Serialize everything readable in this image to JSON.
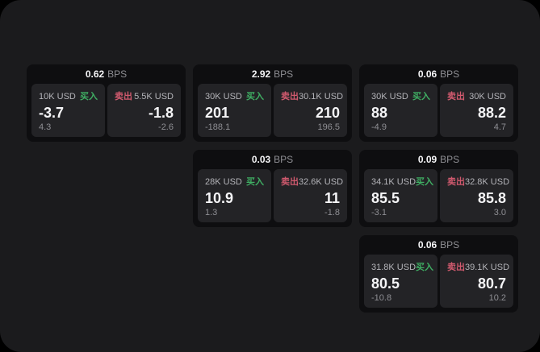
{
  "colors": {
    "page_bg": "#000000",
    "panel_bg": "#1b1b1d",
    "card_bg": "#0e0e10",
    "subcard_bg": "#232326",
    "text_primary": "#f5f5f7",
    "text_label": "#b4b4b9",
    "text_muted": "#8f8f94",
    "buy_green": "#3fae63",
    "sell_red": "#d05a6e"
  },
  "labels": {
    "bps": "BPS",
    "buy": "买入",
    "sell": "卖出"
  },
  "cards": [
    {
      "row": 1,
      "col": 1,
      "bps": "0.62",
      "buy": {
        "amount": "10K USD",
        "value": "-3.7",
        "delta": "4.3"
      },
      "sell": {
        "amount": "5.5K USD",
        "value": "-1.8",
        "delta": "-2.6"
      }
    },
    {
      "row": 1,
      "col": 2,
      "bps": "2.92",
      "buy": {
        "amount": "30K USD",
        "value": "201",
        "delta": "-188.1"
      },
      "sell": {
        "amount": "30.1K USD",
        "value": "210",
        "delta": "196.5"
      }
    },
    {
      "row": 1,
      "col": 3,
      "bps": "0.06",
      "buy": {
        "amount": "30K USD",
        "value": "88",
        "delta": "-4.9"
      },
      "sell": {
        "amount": "30K USD",
        "value": "88.2",
        "delta": "4.7"
      }
    },
    {
      "row": 2,
      "col": 2,
      "bps": "0.03",
      "buy": {
        "amount": "28K USD",
        "value": "10.9",
        "delta": "1.3"
      },
      "sell": {
        "amount": "32.6K USD",
        "value": "11",
        "delta": "-1.8"
      }
    },
    {
      "row": 2,
      "col": 3,
      "bps": "0.09",
      "buy": {
        "amount": "34.1K USD",
        "value": "85.5",
        "delta": "-3.1"
      },
      "sell": {
        "amount": "32.8K USD",
        "value": "85.8",
        "delta": "3.0"
      }
    },
    {
      "row": 3,
      "col": 3,
      "bps": "0.06",
      "buy": {
        "amount": "31.8K USD",
        "value": "80.5",
        "delta": "-10.8"
      },
      "sell": {
        "amount": "39.1K USD",
        "value": "80.7",
        "delta": "10.2"
      }
    }
  ]
}
